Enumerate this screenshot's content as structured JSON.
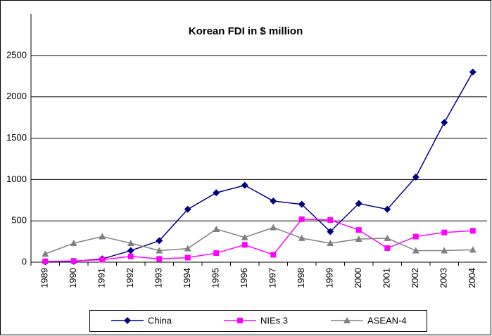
{
  "chart_data": {
    "type": "line",
    "title": "Korean FDI in $ million",
    "categories": [
      "1989",
      "1990",
      "1991",
      "1992",
      "1993",
      "1994",
      "1995",
      "1996",
      "1997",
      "1998",
      "1999",
      "2000",
      "2001",
      "2002",
      "2003",
      "2004"
    ],
    "series": [
      {
        "name": "China",
        "color": "#000080",
        "marker": "diamond",
        "values": [
          5,
          10,
          40,
          140,
          260,
          640,
          840,
          930,
          740,
          700,
          370,
          710,
          640,
          1030,
          1690,
          2300
        ]
      },
      {
        "name": "NIEs 3",
        "color": "#ff00ff",
        "marker": "square",
        "values": [
          10,
          15,
          30,
          70,
          40,
          55,
          110,
          210,
          90,
          520,
          510,
          390,
          170,
          310,
          360,
          380
        ]
      },
      {
        "name": "ASEAN-4",
        "color": "#808080",
        "marker": "triangle",
        "values": [
          100,
          230,
          310,
          230,
          140,
          165,
          400,
          300,
          420,
          290,
          230,
          280,
          290,
          140,
          140,
          150
        ]
      }
    ],
    "ylim": [
      0,
      2500
    ],
    "yticks": [
      0,
      500,
      1000,
      1500,
      2000,
      2500
    ],
    "grid": true,
    "legend": "bottom"
  }
}
